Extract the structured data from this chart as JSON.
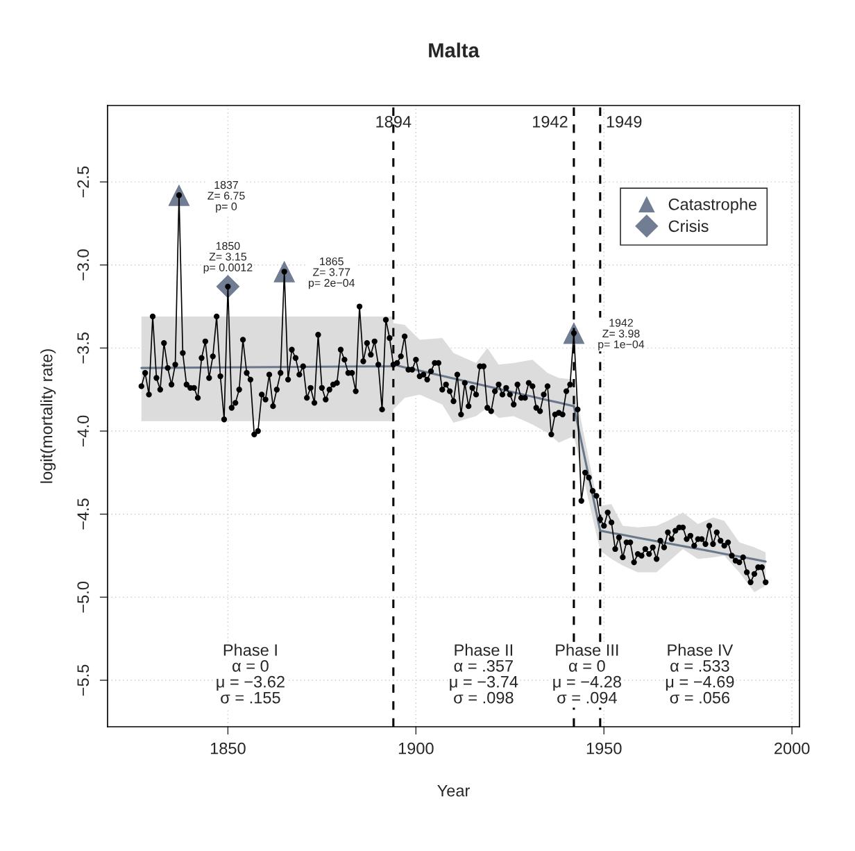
{
  "chart_data": {
    "type": "line",
    "title": "Malta",
    "xlabel": "Year",
    "ylabel": "logit(mortality rate)",
    "xlim": [
      1818,
      2002
    ],
    "ylim": [
      -5.78,
      -2.04
    ],
    "xticks": [
      1850,
      1900,
      1950,
      2000
    ],
    "yticks": [
      {
        "value": -2.5,
        "label": "−2.5"
      },
      {
        "value": -3.0,
        "label": "−3.0"
      },
      {
        "value": -3.5,
        "label": "−3.5"
      },
      {
        "value": -4.0,
        "label": "−4.0"
      },
      {
        "value": -4.5,
        "label": "−4.5"
      },
      {
        "value": -5.0,
        "label": "−5.0"
      },
      {
        "value": -5.5,
        "label": "−5.5"
      }
    ],
    "grid": true,
    "legend": "top right",
    "series": [
      {
        "type": "line",
        "color": "#5c6b82",
        "x": [
          1827,
          1894
        ],
        "values": [
          -3.62,
          -3.61
        ],
        "lower": [
          -3.94,
          -3.94
        ],
        "upper": [
          -3.31,
          -3.31
        ]
      },
      {
        "type": "line",
        "color": "#5c6b82",
        "x": [
          1894,
          1897,
          1901,
          1907,
          1910,
          1916,
          1919,
          1922,
          1926,
          1931,
          1935,
          1938,
          1942
        ],
        "values": [
          -3.6,
          -3.616,
          -3.636,
          -3.668,
          -3.683,
          -3.715,
          -3.73,
          -3.746,
          -3.767,
          -3.793,
          -3.814,
          -3.829,
          -3.85
        ],
        "lower": [
          -3.87,
          -3.8,
          -3.78,
          -3.84,
          -3.95,
          -3.91,
          -3.86,
          -3.92,
          -3.91,
          -3.96,
          -4.01,
          -4.07,
          -4.03
        ],
        "upper": [
          -3.35,
          -3.36,
          -3.45,
          -3.44,
          -3.53,
          -3.59,
          -3.5,
          -3.6,
          -3.59,
          -3.57,
          -3.65,
          -3.68,
          -3.69
        ]
      },
      {
        "type": "line",
        "color": "#5c6b82",
        "x": [
          1942,
          1949
        ],
        "values": [
          -3.85,
          -4.6
        ],
        "lower": [
          -4.03,
          -4.72
        ],
        "upper": [
          -3.72,
          -4.51
        ]
      },
      {
        "type": "line",
        "color": "#5c6b82",
        "x": [
          1949,
          1952,
          1955,
          1959,
          1964,
          1967,
          1971,
          1975,
          1979,
          1982,
          1986,
          1990,
          1993
        ],
        "values": [
          -4.6,
          -4.613,
          -4.625,
          -4.642,
          -4.663,
          -4.676,
          -4.692,
          -4.709,
          -4.726,
          -4.739,
          -4.755,
          -4.772,
          -4.785
        ],
        "lower": [
          -4.72,
          -4.77,
          -4.81,
          -4.85,
          -4.85,
          -4.79,
          -4.71,
          -4.77,
          -4.76,
          -4.75,
          -4.85,
          -4.97,
          -4.93
        ],
        "upper": [
          -4.45,
          -4.44,
          -4.57,
          -4.58,
          -4.57,
          -4.54,
          -4.49,
          -4.56,
          -4.52,
          -4.54,
          -4.67,
          -4.7,
          -4.73
        ]
      },
      {
        "type": "scatter",
        "name": "Catastrophe",
        "color": "#707d92",
        "marker": "triangle",
        "x": [
          1837,
          1865,
          1942
        ],
        "values": [
          -2.58,
          -3.04,
          -3.41
        ]
      },
      {
        "type": "scatter",
        "name": "Crisis",
        "color": "#707d92",
        "marker": "diamond",
        "x": [
          1850
        ],
        "values": [
          -3.13
        ]
      },
      {
        "color": "#000000",
        "marker": "circle",
        "line_style": "solid",
        "x": [
          1827,
          1828,
          1829,
          1830,
          1831,
          1832,
          1833,
          1834,
          1835,
          1836,
          1837,
          1838,
          1839,
          1840,
          1841,
          1842,
          1843,
          1844,
          1845,
          1846,
          1847,
          1848,
          1849,
          1850,
          1851,
          1852,
          1853,
          1854,
          1855,
          1856,
          1857,
          1858,
          1859,
          1860,
          1861,
          1862,
          1863,
          1864,
          1865,
          1866,
          1867,
          1868,
          1869,
          1870,
          1871,
          1872,
          1873,
          1874,
          1875,
          1876,
          1877,
          1878,
          1879,
          1880,
          1881,
          1882,
          1883,
          1884,
          1885,
          1886,
          1887,
          1888,
          1889,
          1890,
          1891,
          1892,
          1893,
          1894,
          1895,
          1896,
          1897,
          1898,
          1899,
          1900,
          1901,
          1902,
          1903,
          1904,
          1905,
          1906,
          1907,
          1908,
          1909,
          1910,
          1911,
          1912,
          1913,
          1914,
          1915,
          1916,
          1917,
          1918,
          1919,
          1920,
          1921,
          1922,
          1923,
          1924,
          1925,
          1926,
          1927,
          1928,
          1929,
          1930,
          1931,
          1932,
          1933,
          1934,
          1935,
          1936,
          1937,
          1938,
          1939,
          1940,
          1941,
          1942,
          1943,
          1944,
          1945,
          1946,
          1947,
          1948,
          1949,
          1950,
          1951,
          1952,
          1953,
          1954,
          1955,
          1956,
          1957,
          1958,
          1959,
          1960,
          1961,
          1962,
          1963,
          1964,
          1965,
          1966,
          1967,
          1968,
          1969,
          1970,
          1971,
          1972,
          1973,
          1974,
          1975,
          1976,
          1977,
          1978,
          1979,
          1980,
          1981,
          1982,
          1983,
          1984,
          1985,
          1986,
          1987,
          1988,
          1989,
          1990,
          1991,
          1992,
          1993
        ],
        "values": [
          -3.73,
          -3.65,
          -3.78,
          -3.31,
          -3.68,
          -3.75,
          -3.47,
          -3.62,
          -3.72,
          -3.6,
          -2.58,
          -3.53,
          -3.72,
          -3.74,
          -3.74,
          -3.8,
          -3.56,
          -3.46,
          -3.68,
          -3.55,
          -3.31,
          -3.67,
          -3.93,
          -3.13,
          -3.86,
          -3.83,
          -3.75,
          -3.45,
          -3.65,
          -3.69,
          -4.02,
          -4.0,
          -3.78,
          -3.81,
          -3.66,
          -3.85,
          -3.75,
          -3.65,
          -3.04,
          -3.69,
          -3.51,
          -3.56,
          -3.66,
          -3.61,
          -3.8,
          -3.74,
          -3.83,
          -3.42,
          -3.74,
          -3.81,
          -3.75,
          -3.72,
          -3.71,
          -3.51,
          -3.57,
          -3.65,
          -3.65,
          -3.76,
          -3.25,
          -3.58,
          -3.47,
          -3.54,
          -3.46,
          -3.6,
          -3.87,
          -3.33,
          -3.44,
          -3.6,
          -3.59,
          -3.55,
          -3.43,
          -3.63,
          -3.63,
          -3.57,
          -3.67,
          -3.66,
          -3.69,
          -3.64,
          -3.59,
          -3.59,
          -3.75,
          -3.72,
          -3.76,
          -3.82,
          -3.66,
          -3.9,
          -3.71,
          -3.85,
          -3.74,
          -3.78,
          -3.61,
          -3.61,
          -3.86,
          -3.88,
          -3.76,
          -3.72,
          -3.78,
          -3.74,
          -3.78,
          -3.84,
          -3.72,
          -3.8,
          -3.8,
          -3.71,
          -3.73,
          -3.86,
          -3.88,
          -3.78,
          -3.73,
          -4.02,
          -3.9,
          -3.89,
          -3.9,
          -3.76,
          -3.72,
          -3.41,
          -3.87,
          -4.42,
          -4.25,
          -4.28,
          -4.36,
          -4.39,
          -4.53,
          -4.57,
          -4.49,
          -4.55,
          -4.71,
          -4.64,
          -4.76,
          -4.67,
          -4.67,
          -4.79,
          -4.74,
          -4.75,
          -4.71,
          -4.74,
          -4.7,
          -4.77,
          -4.66,
          -4.7,
          -4.61,
          -4.65,
          -4.6,
          -4.58,
          -4.58,
          -4.65,
          -4.63,
          -4.69,
          -4.65,
          -4.65,
          -4.68,
          -4.57,
          -4.68,
          -4.61,
          -4.66,
          -4.69,
          -4.67,
          -4.75,
          -4.78,
          -4.79,
          -4.76,
          -4.85,
          -4.91,
          -4.86,
          -4.82,
          -4.82,
          -4.91
        ]
      }
    ],
    "ref_lines": [
      {
        "axis": "x",
        "value": 1894,
        "label": "1894",
        "color": "#000000",
        "line_style": "dashed"
      },
      {
        "axis": "x",
        "value": 1942,
        "label": "1942",
        "color": "#000000",
        "line_style": "dashed"
      },
      {
        "axis": "x",
        "value": 1949,
        "label": "1949",
        "color": "#000000",
        "line_style": "dashed"
      }
    ],
    "annotations": [
      "1837\nZ= 6.75\np= 0",
      "1850\nZ= 3.15\np= 0.0012",
      "1865\nZ= 3.77\np= 2e−04",
      "1942\nZ= 3.98\np= 1e−04",
      "Phase I\nα = 0\nμ = −3.62\nσ = .155",
      "Phase II\nα = .357\nμ = −3.74\nσ = .098",
      "Phase III\nα = 0\nμ = −4.28\nσ = .094",
      "Phase IV\nα = .533\nμ = −4.69\nσ = .056"
    ]
  }
}
